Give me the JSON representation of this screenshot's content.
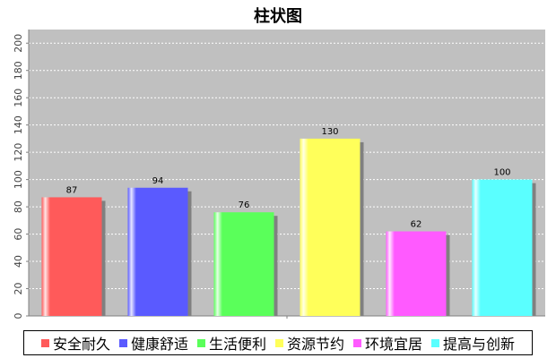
{
  "chart_data": {
    "type": "bar",
    "title": "柱状图",
    "categories": [
      "安全耐久",
      "健康舒适",
      "生活便利",
      "资源节约",
      "环境宜居",
      "提高与创新"
    ],
    "values": [
      87,
      94,
      76,
      130,
      62,
      100
    ],
    "colors": [
      "#ff5a5a",
      "#5a5aff",
      "#5aff5a",
      "#ffff5a",
      "#ff5aff",
      "#5affff"
    ],
    "ylim": [
      0,
      210
    ],
    "yticks": [
      0,
      20,
      40,
      60,
      80,
      100,
      120,
      140,
      160,
      180,
      200
    ],
    "grid": true,
    "legend_position": "bottom"
  }
}
